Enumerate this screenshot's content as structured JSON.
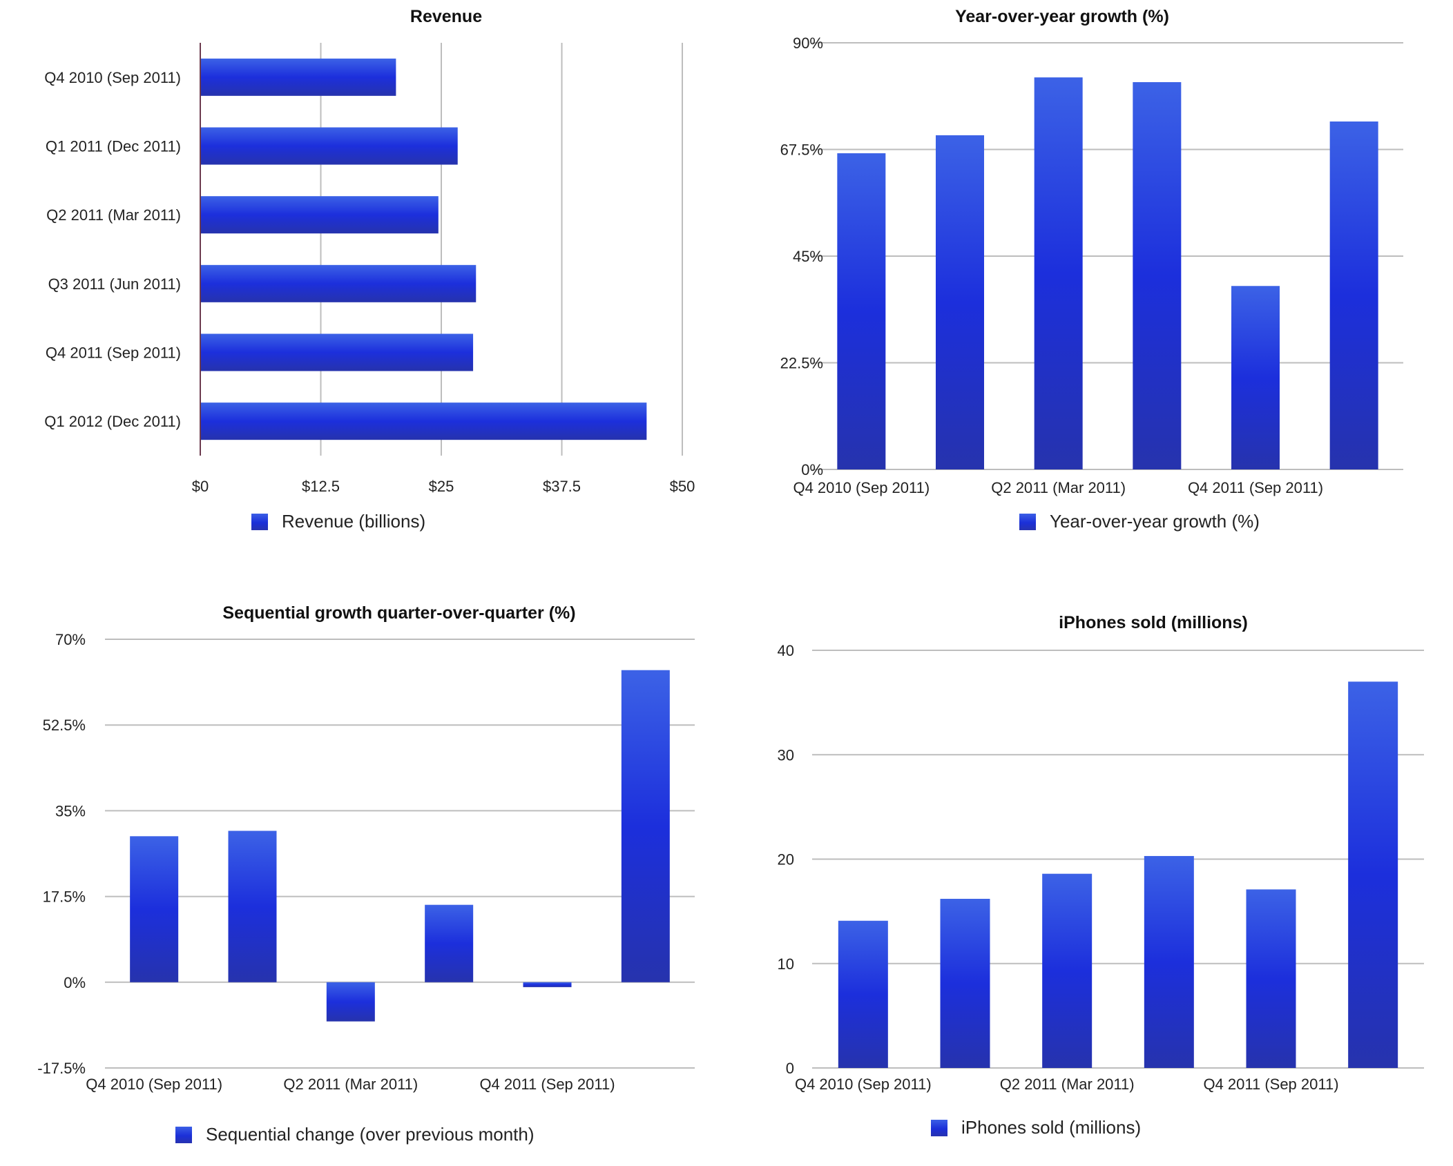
{
  "colors": {
    "bar_top": "#3c62e6",
    "bar_mid": "#1c2fdc",
    "bar_bottom": "#2633ad",
    "grid": "#bdbdbd",
    "axis": "#6b3a4e"
  },
  "chart_data": [
    {
      "type": "bar",
      "orientation": "horizontal",
      "title": "Revenue",
      "categories": [
        "Q4 2010 (Sep 2011)",
        "Q1 2011 (Dec 2011)",
        "Q2 2011 (Mar 2011)",
        "Q3 2011 (Jun 2011)",
        "Q4 2011 (Sep 2011)",
        "Q1 2012 (Dec 2011)"
      ],
      "series": [
        {
          "name": "Revenue (billions)",
          "values": [
            20.3,
            26.7,
            24.7,
            28.6,
            28.3,
            46.3
          ]
        }
      ],
      "xlim": [
        0,
        50
      ],
      "ticks": [
        0,
        12.5,
        25,
        37.5,
        50
      ],
      "tick_labels": [
        "$0",
        "$12.5",
        "$25",
        "$37.5",
        "$50"
      ],
      "grid": true,
      "legend": "bottom"
    },
    {
      "type": "bar",
      "title": "Year-over-year growth (%)",
      "categories": [
        "Q4 2010 (Sep 2011)",
        "Q1 2011 (Dec 2011)",
        "Q2 2011 (Mar 2011)",
        "Q3 2011 (Jun 2011)",
        "Q4 2011 (Sep 2011)",
        "Q1 2012 (Dec 2011)"
      ],
      "shown_category_labels": [
        "Q4 2010 (Sep 2011)",
        "Q2 2011 (Mar 2011)",
        "Q4 2011 (Sep 2011)"
      ],
      "series": [
        {
          "name": "Year-over-year growth (%)",
          "values": [
            66.7,
            70.5,
            82.7,
            81.7,
            38.7,
            73.4
          ]
        }
      ],
      "ylim": [
        0,
        90
      ],
      "ticks": [
        0,
        22.5,
        45,
        67.5,
        90
      ],
      "tick_labels": [
        "0%",
        "22.5%",
        "45%",
        "67.5%",
        "90%"
      ],
      "grid": true,
      "legend": "bottom"
    },
    {
      "type": "bar",
      "title": "Sequential growth quarter-over-quarter (%)",
      "categories": [
        "Q4 2010 (Sep 2011)",
        "Q1 2011 (Dec 2011)",
        "Q2 2011 (Mar 2011)",
        "Q3 2011 (Jun 2011)",
        "Q4 2011 (Sep 2011)",
        "Q1 2012 (Dec 2011)"
      ],
      "shown_category_labels": [
        "Q4 2010 (Sep 2011)",
        "Q2 2011 (Mar 2011)",
        "Q4 2011 (Sep 2011)"
      ],
      "series": [
        {
          "name": "Sequential change (over previous month)",
          "values": [
            29.8,
            30.9,
            -8,
            15.8,
            -1,
            63.7
          ]
        }
      ],
      "ylim": [
        -17.5,
        70
      ],
      "ticks": [
        -17.5,
        0,
        17.5,
        35,
        52.5,
        70
      ],
      "tick_labels": [
        "-17.5%",
        "0%",
        "17.5%",
        "35%",
        "52.5%",
        "70%"
      ],
      "grid": true,
      "legend": "bottom"
    },
    {
      "type": "bar",
      "title": "iPhones sold (millions)",
      "categories": [
        "Q4 2010 (Sep 2011)",
        "Q1 2011 (Dec 2011)",
        "Q2 2011 (Mar 2011)",
        "Q3 2011 (Jun 2011)",
        "Q4 2011 (Sep 2011)",
        "Q1 2012 (Dec 2011)"
      ],
      "shown_category_labels": [
        "Q4 2010 (Sep 2011)",
        "Q2 2011 (Mar 2011)",
        "Q4 2011 (Sep 2011)"
      ],
      "series": [
        {
          "name": "iPhones sold (millions)",
          "values": [
            14.1,
            16.2,
            18.6,
            20.3,
            17.1,
            37
          ]
        }
      ],
      "ylim": [
        0,
        40
      ],
      "ticks": [
        0,
        10,
        20,
        30,
        40
      ],
      "tick_labels": [
        "0",
        "10",
        "20",
        "30",
        "40"
      ],
      "grid": true,
      "legend": "bottom"
    }
  ]
}
